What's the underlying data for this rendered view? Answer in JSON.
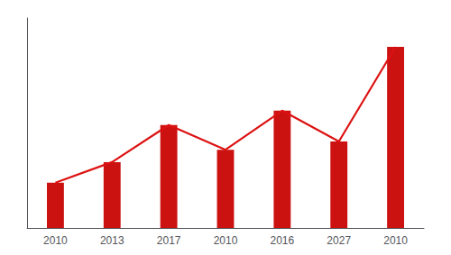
{
  "chart_data": {
    "type": "bar",
    "categories": [
      "2010",
      "2013",
      "2017",
      "2010",
      "2016",
      "2027",
      "2010"
    ],
    "series": [
      {
        "type": "bar",
        "color": "#cc1111",
        "values": [
          0.22,
          0.32,
          0.5,
          0.38,
          0.57,
          0.42,
          0.88
        ]
      },
      {
        "type": "line",
        "color": "#dd1111",
        "values": [
          0.22,
          0.32,
          0.5,
          0.38,
          0.57,
          0.42,
          0.88
        ]
      }
    ],
    "ylim": [
      0,
      1.02
    ],
    "grid": false,
    "tick_labels": "x"
  }
}
